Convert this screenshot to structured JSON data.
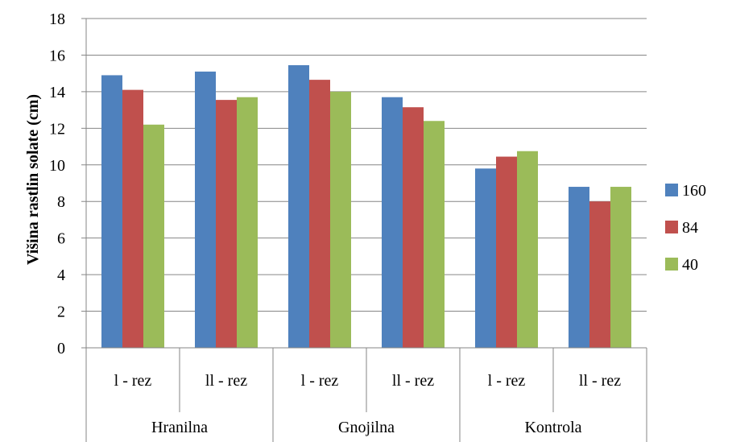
{
  "chart_data": {
    "type": "bar",
    "title": "",
    "ylabel": "Višina rastlin solate (cm)",
    "xlabel": "",
    "ylim": [
      0,
      18
    ],
    "yticks": [
      0,
      2,
      4,
      6,
      8,
      10,
      12,
      14,
      16,
      18
    ],
    "grid": "horizontal",
    "legend_position": "right",
    "categories": [
      "l - rez",
      "ll - rez",
      "l - rez",
      "ll - rez",
      "l - rez",
      "ll - rez"
    ],
    "groups": [
      {
        "label": "Hranilna",
        "span": 2
      },
      {
        "label": "Gnojilna",
        "span": 2
      },
      {
        "label": "Kontrola",
        "span": 2
      }
    ],
    "series": [
      {
        "name": "160",
        "color": "#4F81BD",
        "values": [
          14.9,
          15.1,
          15.45,
          13.7,
          9.8,
          8.8
        ]
      },
      {
        "name": "84",
        "color": "#C0504D",
        "values": [
          14.1,
          13.55,
          14.65,
          13.15,
          10.45,
          8.0
        ]
      },
      {
        "name": "40",
        "color": "#9BBB59",
        "values": [
          12.2,
          13.7,
          14.0,
          12.4,
          10.75,
          8.8
        ]
      }
    ]
  }
}
